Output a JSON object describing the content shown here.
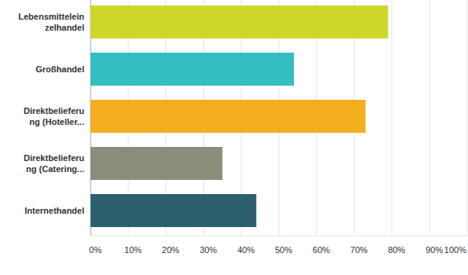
{
  "chart_data": {
    "type": "bar",
    "orientation": "horizontal",
    "categories": [
      "Lebensmitteleinzelhandel",
      "Großhandel",
      "Direktbelieferung (Hoteller...",
      "Direktbelieferung (Catering...",
      "Internethandel"
    ],
    "values": [
      79,
      54,
      73,
      35,
      44
    ],
    "colors": [
      "#cfd62a",
      "#35bec1",
      "#f5ae20",
      "#8c8c7a",
      "#2d5f6e"
    ],
    "xlim": [
      0,
      100
    ],
    "xticks": [
      {
        "value": 0,
        "label": "0%"
      },
      {
        "value": 10,
        "label": "10%"
      },
      {
        "value": 20,
        "label": "20%"
      },
      {
        "value": 30,
        "label": "30%"
      },
      {
        "value": 40,
        "label": "40%"
      },
      {
        "value": 50,
        "label": "50%"
      },
      {
        "value": 60,
        "label": "60%"
      },
      {
        "value": 70,
        "label": "70%"
      },
      {
        "value": 80,
        "label": "80%"
      },
      {
        "value": 90,
        "label": "90%"
      },
      {
        "value": 100,
        "label": "100%"
      }
    ],
    "grid": true
  }
}
